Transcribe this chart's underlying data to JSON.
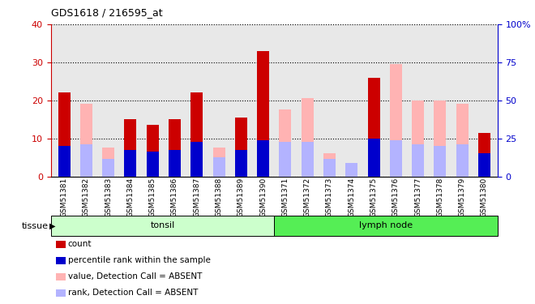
{
  "title": "GDS1618 / 216595_at",
  "samples": [
    "GSM51381",
    "GSM51382",
    "GSM51383",
    "GSM51384",
    "GSM51385",
    "GSM51386",
    "GSM51387",
    "GSM51388",
    "GSM51389",
    "GSM51390",
    "GSM51371",
    "GSM51372",
    "GSM51373",
    "GSM51374",
    "GSM51375",
    "GSM51376",
    "GSM51377",
    "GSM51378",
    "GSM51379",
    "GSM51380"
  ],
  "count_values": [
    22,
    0,
    0,
    15,
    13.5,
    15,
    22,
    0,
    15.5,
    33,
    0,
    0,
    0,
    0,
    26,
    0,
    0,
    0,
    0,
    11.5
  ],
  "rank_values": [
    8,
    0,
    0,
    7,
    6.5,
    7,
    9,
    0,
    7.0,
    9.5,
    0,
    0,
    0,
    0,
    10,
    0,
    0,
    0,
    0,
    6.0
  ],
  "absent_count_values": [
    0,
    19,
    7.5,
    0,
    0,
    0,
    0,
    7.5,
    0,
    0,
    17.5,
    20.5,
    6.0,
    2.5,
    0,
    29.5,
    20,
    20,
    19,
    0
  ],
  "absent_rank_values": [
    0,
    8.5,
    4.5,
    0,
    0,
    0,
    0,
    5.0,
    0,
    0,
    9.0,
    9.0,
    4.5,
    3.5,
    0,
    9.5,
    8.5,
    8,
    8.5,
    0
  ],
  "ylim_left": [
    0,
    40
  ],
  "ylim_right": [
    0,
    100
  ],
  "yticks_left": [
    0,
    10,
    20,
    30,
    40
  ],
  "yticks_right": [
    0,
    25,
    50,
    75,
    100
  ],
  "color_count": "#cc0000",
  "color_rank": "#0000cc",
  "color_absent_count": "#ffb3b3",
  "color_absent_rank": "#b3b3ff",
  "color_tonsil_bg": "#ccffcc",
  "color_lymph_bg": "#55ee55",
  "color_plot_bg": "#e8e8e8",
  "color_axis_left": "#cc0000",
  "color_axis_right": "#0000cc",
  "tonsil_label": "tonsil",
  "lymph_label": "lymph node",
  "tissue_label": "tissue",
  "legend_items": [
    {
      "color": "#cc0000",
      "label": "count"
    },
    {
      "color": "#0000cc",
      "label": "percentile rank within the sample"
    },
    {
      "color": "#ffb3b3",
      "label": "value, Detection Call = ABSENT"
    },
    {
      "color": "#b3b3ff",
      "label": "rank, Detection Call = ABSENT"
    }
  ]
}
